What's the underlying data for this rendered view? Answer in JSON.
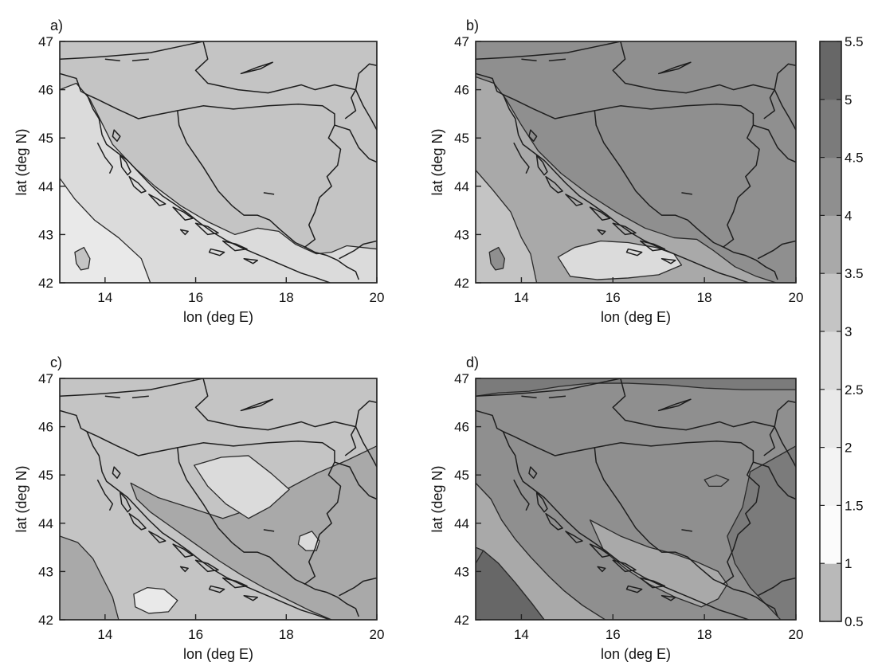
{
  "chart_data": {
    "type": "heatmap",
    "panels": [
      {
        "id": "a",
        "label": "a)",
        "xlabel": "lon (deg E)",
        "ylabel": "lat (deg N)",
        "xlim": [
          13,
          20
        ],
        "ylim": [
          42,
          47
        ],
        "xticks": [
          14,
          16,
          18,
          20
        ],
        "yticks": [
          42,
          43,
          44,
          45,
          46,
          47
        ]
      },
      {
        "id": "b",
        "label": "b)",
        "xlabel": "lon (deg E)",
        "ylabel": "lat (deg N)",
        "xlim": [
          13,
          20
        ],
        "ylim": [
          42,
          47
        ],
        "xticks": [
          14,
          16,
          18,
          20
        ],
        "yticks": [
          42,
          43,
          44,
          45,
          46,
          47
        ]
      },
      {
        "id": "c",
        "label": "c)",
        "xlabel": "lon (deg E)",
        "ylabel": "lat (deg N)",
        "xlim": [
          13,
          20
        ],
        "ylim": [
          42,
          47
        ],
        "xticks": [
          14,
          16,
          18,
          20
        ],
        "yticks": [
          42,
          43,
          44,
          45,
          46,
          47
        ]
      },
      {
        "id": "d",
        "label": "d)",
        "xlabel": "lon (deg E)",
        "ylabel": "lat (deg N)",
        "xlim": [
          13,
          20
        ],
        "ylim": [
          42,
          47
        ],
        "xticks": [
          14,
          16,
          18,
          20
        ],
        "yticks": [
          42,
          43,
          44,
          45,
          46,
          47
        ]
      }
    ],
    "colorbar": {
      "range": [
        0.5,
        5.5
      ],
      "ticks": [
        "0.5",
        "1",
        "1.5",
        "2",
        "2.5",
        "3",
        "3.5",
        "4",
        "4.5",
        "5",
        "5.5"
      ],
      "colors": [
        "#b9b9b9",
        "#fbfbfb",
        "#f3f3f3",
        "#e9e9e9",
        "#dbdbdb",
        "#c4c4c4",
        "#a9a9a9",
        "#8f8f8f",
        "#7b7b7b",
        "#676767"
      ]
    }
  }
}
